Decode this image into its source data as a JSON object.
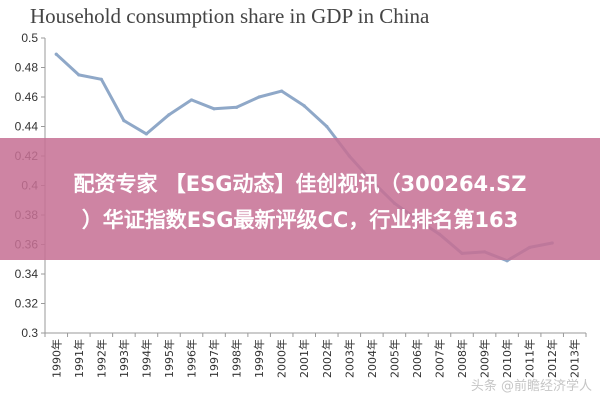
{
  "chart_data": {
    "type": "line",
    "title": "Household consumption share in GDP in China",
    "xlabel": "",
    "ylabel": "",
    "ylim": [
      0.3,
      0.5
    ],
    "yticks": [
      0.3,
      0.32,
      0.34,
      0.36,
      0.38,
      0.4,
      0.42,
      0.44,
      0.46,
      0.48,
      0.5
    ],
    "ytick_labels": [
      "0.3",
      "0.32",
      "0.34",
      "0.36",
      "0.38",
      "0.4",
      "0.42",
      "0.44",
      "0.46",
      "0.48",
      "0.5"
    ],
    "categories": [
      "1990年",
      "1991年",
      "1992年",
      "1993年",
      "1994年",
      "1995年",
      "1996年",
      "1997年",
      "1998年",
      "1999年",
      "2000年",
      "2001年",
      "2002年",
      "2003年",
      "2004年",
      "2005年",
      "2006年",
      "2007年",
      "2008年",
      "2009年",
      "2010年",
      "2011年",
      "2012年",
      "2013年"
    ],
    "series": [
      {
        "values": [
          0.489,
          0.475,
          0.472,
          0.444,
          0.435,
          0.448,
          0.458,
          0.452,
          0.453,
          0.46,
          0.464,
          0.454,
          0.44,
          0.42,
          0.403,
          0.388,
          0.377,
          0.367,
          0.354,
          0.355,
          0.349,
          0.358,
          0.361,
          null
        ],
        "color": "#8fa8c8"
      }
    ],
    "grid": false,
    "legend": "none"
  },
  "overlay": {
    "line1": "配资专家 【ESG动态】佳创视讯（300264.SZ",
    "line2": "）华证指数ESG最新评级CC，行业排名第163",
    "color": "#c67094"
  },
  "watermark": {
    "text": "头条 @前瞻经济学人"
  }
}
